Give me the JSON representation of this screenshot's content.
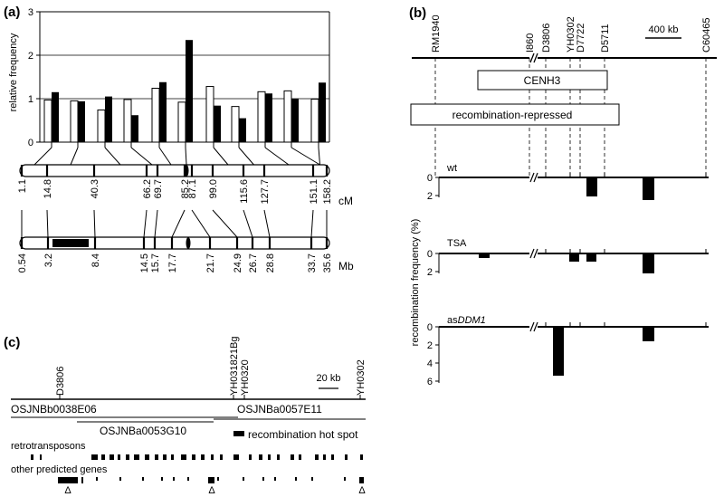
{
  "panel_a": {
    "label": "(a)",
    "ylabel": "relative frequency",
    "yticks": [
      "0",
      "1",
      "2",
      "3"
    ],
    "cm_unit": "cM",
    "mb_unit": "Mb",
    "cm_values": [
      "1.1",
      "14.8",
      "40.3",
      "66.2",
      "69.7",
      "85.2",
      "87.1",
      "99.0",
      "115.6",
      "127.7",
      "151.1",
      "158.2"
    ],
    "mb_values": [
      "0.54",
      "3.2",
      "8.4",
      "14.5",
      "15.7",
      "17.7",
      "21.7",
      "24.9",
      "26.7",
      "28.8",
      "33.7",
      "35.6"
    ]
  },
  "chart_data": {
    "type": "bar",
    "ylabel": "relative frequency",
    "ylim": [
      0,
      3
    ],
    "grid": "horizontal at 1, 2, 3",
    "series": [
      {
        "values": [
          0.97,
          0.95,
          0.74,
          0.98,
          1.24,
          0.92,
          1.28,
          0.82,
          1.16,
          1.18,
          0.99
        ]
      },
      {
        "values": [
          1.15,
          0.94,
          1.05,
          0.62,
          1.38,
          2.35,
          0.84,
          0.55,
          1.12,
          1.0,
          1.37
        ]
      }
    ]
  },
  "panel_b": {
    "label": "(b)",
    "markers": [
      "RM1940",
      "I860",
      "D3806",
      "YH0302",
      "D7722",
      "D5711",
      "C60465"
    ],
    "scale_label": "400 kb",
    "cenh3_label": "CENH3",
    "recomb_repressed_label": "recombination-repressed",
    "ylabel": "recombination frequency (%)",
    "tracks": [
      {
        "name": "wt",
        "ticks": [
          "0",
          "2"
        ]
      },
      {
        "name": "TSA",
        "ticks": [
          "0",
          "2"
        ]
      },
      {
        "name": "asDDM1",
        "name_plain": "as",
        "name_italic": "DDM1",
        "ticks": [
          "0",
          "2",
          "4",
          "6"
        ]
      }
    ]
  },
  "panel_c": {
    "label": "(c)",
    "markers": [
      "D3806",
      "YH031821Bg",
      "YH0320",
      "YH0302"
    ],
    "scale_label": "20 kb",
    "clones": [
      "OSJNBb0038E06",
      "OSJNBa0053G10",
      "OSJNBa0057E11"
    ],
    "hotspot_label": "recombination hot spot",
    "retro_label": "retrotransposons",
    "genes_label": "other predicted genes",
    "triangle_glyph": "Δ"
  }
}
